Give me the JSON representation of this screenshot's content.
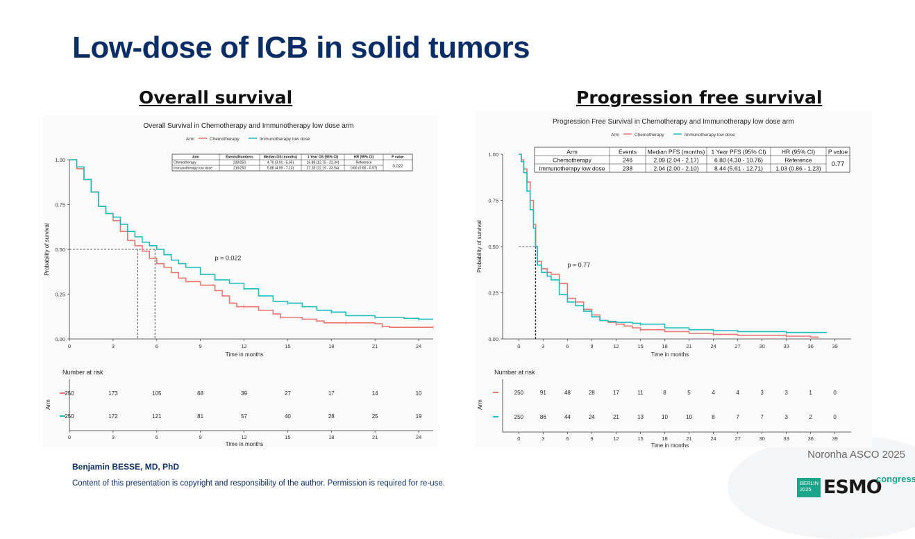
{
  "slide": {
    "title": "Low-dose of ICB in solid tumors",
    "left_heading": "Overall survival",
    "right_heading": "Progression free survival",
    "author": "Benjamin BESSE, MD, PhD",
    "copyright": "Content of this presentation is copyright and responsibility of the author. Permission is required for re-use.",
    "source": "Noronha ASCO 2025",
    "logo": {
      "box_line1": "BERLIN",
      "box_line2": "2025",
      "word": "ESMO",
      "suffix": "congress"
    }
  },
  "colors": {
    "chemo": "#e8776f",
    "immuno": "#1fbcbc",
    "title": "#0b2d66",
    "accent": "#1aa58a"
  },
  "chart_data": [
    {
      "type": "line",
      "title": "Overall Survival in Chemotherapy and Immunotherapy low dose arm",
      "legend_title": "Arm",
      "legend_position": "top",
      "xlabel": "Time in months",
      "ylabel": "Probability of survival",
      "xlim": [
        0,
        25
      ],
      "ylim": [
        0,
        1
      ],
      "x_ticks": [
        0,
        3,
        6,
        9,
        12,
        15,
        18,
        21,
        24
      ],
      "y_ticks": [
        0,
        0.25,
        0.5,
        0.75,
        1.0
      ],
      "y_tick_labels": [
        "0.00",
        "0.25",
        "0.50",
        "0.75",
        "1.00"
      ],
      "p_value_text": "p = 0.022",
      "p_value_at": [
        10,
        0.44
      ],
      "median_lines": [
        4.7,
        5.88
      ],
      "series": [
        {
          "name": "Chemotherapy",
          "color_key": "chemo",
          "x": [
            0,
            0.5,
            1,
            1.5,
            2,
            2.5,
            3,
            3.5,
            4,
            4.5,
            5,
            5.5,
            6,
            6.5,
            7,
            7.5,
            8,
            9,
            10,
            10.5,
            11,
            11.5,
            12,
            13,
            14,
            14.5,
            15,
            16,
            17,
            17.5,
            18,
            19,
            20,
            21,
            21.5,
            22,
            24,
            25
          ],
          "y": [
            1,
            0.95,
            0.89,
            0.82,
            0.74,
            0.7,
            0.66,
            0.6,
            0.55,
            0.52,
            0.49,
            0.45,
            0.42,
            0.4,
            0.37,
            0.34,
            0.32,
            0.3,
            0.27,
            0.24,
            0.2,
            0.18,
            0.18,
            0.16,
            0.14,
            0.12,
            0.12,
            0.11,
            0.1,
            0.09,
            0.09,
            0.09,
            0.09,
            0.085,
            0.07,
            0.065,
            0.065,
            0.065
          ]
        },
        {
          "name": "Immunotherapy low dose",
          "color_key": "immuno",
          "x": [
            0,
            0.5,
            1,
            1.5,
            2,
            2.5,
            3,
            3.5,
            4,
            4.5,
            5,
            5.5,
            6,
            6.5,
            7,
            7.5,
            8,
            9,
            10,
            11,
            12,
            13,
            14,
            15,
            16,
            17,
            18,
            19,
            20,
            21,
            22,
            23,
            24,
            25
          ],
          "y": [
            1,
            0.96,
            0.89,
            0.82,
            0.74,
            0.7,
            0.68,
            0.64,
            0.6,
            0.57,
            0.54,
            0.52,
            0.5,
            0.47,
            0.44,
            0.42,
            0.4,
            0.36,
            0.33,
            0.31,
            0.28,
            0.24,
            0.21,
            0.2,
            0.18,
            0.16,
            0.15,
            0.13,
            0.13,
            0.12,
            0.12,
            0.115,
            0.11,
            0.11
          ]
        }
      ],
      "table": {
        "columns": [
          "Arm",
          "Events/Numbers",
          "Median OS (months)",
          "1 Year OS (95% CI)",
          "HR (95% CI)",
          "P value"
        ],
        "rows": [
          [
            "Chemotherapy",
            "230/250",
            "4.70 (3.91 - 5.65)",
            "16.88 (12.75 - 22.34)",
            "Reference"
          ],
          [
            "Immunotherapy low dose",
            "216/250",
            "5.88 (4.99 - 7.13)",
            "27.28 (22.19 - 33.54)",
            "0.80 (0.66 - 0.97)"
          ]
        ],
        "p_value": "0.022"
      },
      "risk_table": {
        "title": "Number at risk",
        "ylabel": "Arm",
        "xlabel": "Time in months",
        "times": [
          0,
          3,
          6,
          9,
          12,
          15,
          18,
          21,
          24
        ],
        "chemo": [
          "250",
          "173",
          "105",
          "68",
          "39",
          "27",
          "17",
          "14",
          "10"
        ],
        "immuno": [
          "250",
          "172",
          "121",
          "81",
          "57",
          "40",
          "28",
          "25",
          "19"
        ]
      }
    },
    {
      "type": "line",
      "title": "Progression Free Survival in Chemotherapy and Immunotherapy low dose arm",
      "legend_title": "Arm",
      "legend_position": "top",
      "xlabel": "Time in months",
      "ylabel": "Probability of survival",
      "xlim": [
        -2,
        41
      ],
      "ylim": [
        0,
        1
      ],
      "x_ticks": [
        0,
        3,
        6,
        9,
        12,
        15,
        18,
        21,
        24,
        27,
        30,
        33,
        36,
        39
      ],
      "y_ticks": [
        0,
        0.25,
        0.5,
        0.75,
        1.0
      ],
      "y_tick_labels": [
        "0.00",
        "0.25",
        "0.50",
        "0.75",
        "1.00"
      ],
      "p_value_text": "p = 0.77",
      "p_value_at": [
        6,
        0.39
      ],
      "median_lines": [
        2.09,
        2.04
      ],
      "series": [
        {
          "name": "Chemotherapy",
          "color_key": "chemo",
          "x": [
            0,
            0.3,
            0.6,
            1,
            1.4,
            1.8,
            2.09,
            2.3,
            2.8,
            3.5,
            4,
            5,
            6,
            7,
            8,
            9,
            10,
            11,
            12,
            13,
            14,
            15,
            18,
            21,
            24,
            27,
            30,
            33,
            36,
            37
          ],
          "y": [
            1,
            0.97,
            0.92,
            0.85,
            0.75,
            0.62,
            0.5,
            0.42,
            0.38,
            0.36,
            0.35,
            0.3,
            0.22,
            0.2,
            0.16,
            0.13,
            0.1,
            0.09,
            0.08,
            0.07,
            0.06,
            0.05,
            0.04,
            0.03,
            0.025,
            0.02,
            0.02,
            0.015,
            0.01,
            0.01
          ]
        },
        {
          "name": "Immunotherapy low dose",
          "color_key": "immuno",
          "x": [
            0,
            0.3,
            0.6,
            1,
            1.4,
            1.8,
            2.04,
            2.3,
            2.8,
            3.5,
            4,
            5,
            6,
            7,
            8,
            9,
            10,
            11,
            12,
            13,
            14,
            15,
            18,
            21,
            24,
            27,
            30,
            33,
            36,
            38
          ],
          "y": [
            1,
            0.96,
            0.9,
            0.8,
            0.7,
            0.6,
            0.5,
            0.4,
            0.36,
            0.34,
            0.32,
            0.24,
            0.2,
            0.18,
            0.15,
            0.12,
            0.1,
            0.095,
            0.09,
            0.09,
            0.085,
            0.08,
            0.06,
            0.05,
            0.045,
            0.04,
            0.04,
            0.035,
            0.035,
            0.035
          ]
        }
      ],
      "table": {
        "columns": [
          "Arm",
          "Events",
          "Median PFS (months)",
          "1 Year PFS (95% CI)",
          "HR (95% CI)",
          "P value"
        ],
        "rows": [
          [
            "Chemotherapy",
            "246",
            "2.09 (2.04 - 2.17)",
            "6.80 (4.30 - 10.76)",
            "Reference"
          ],
          [
            "Immunotherapy low dose",
            "238",
            "2.04 (2.00 - 2.10)",
            "8.44 (5.61 - 12.71)",
            "1.03 (0.86 - 1.23)"
          ]
        ],
        "p_value": "0.77"
      },
      "risk_table": {
        "title": "Number at risk",
        "ylabel": "Arm",
        "xlabel": "Time in months",
        "times": [
          0,
          3,
          6,
          9,
          12,
          15,
          18,
          21,
          24,
          27,
          30,
          33,
          36,
          39
        ],
        "chemo": [
          "250",
          "91",
          "48",
          "28",
          "17",
          "11",
          "8",
          "5",
          "4",
          "4",
          "3",
          "3",
          "1",
          "0"
        ],
        "immuno": [
          "250",
          "86",
          "44",
          "24",
          "21",
          "13",
          "10",
          "10",
          "8",
          "7",
          "7",
          "3",
          "2",
          "0"
        ]
      }
    }
  ]
}
